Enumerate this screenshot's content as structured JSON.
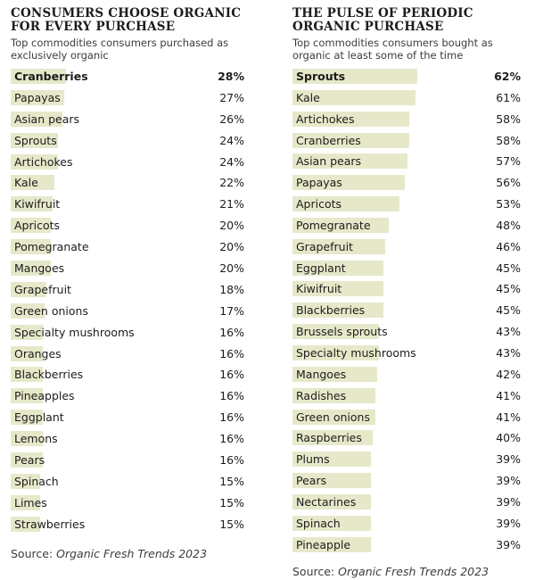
{
  "chart_data": [
    {
      "type": "bar",
      "title": "CONSUMERS CHOOSE ORGANIC FOR EVERY PURCHASE",
      "subtitle": "Top commodities consumers purchased as exclusively organic",
      "source_label": "Source: ",
      "source_name": "Organic Fresh Trends 2023",
      "max_value": 62,
      "categories": [
        "Cranberries",
        "Papayas",
        "Asian pears",
        "Sprouts",
        "Artichokes",
        "Kale",
        "Kiwifruit",
        "Apricots",
        "Pomegranate",
        "Mangoes",
        "Grapefruit",
        "Green onions",
        "Specialty mushrooms",
        "Oranges",
        "Blackberries",
        "Pineapples",
        "Eggplant",
        "Lemons",
        "Pears",
        "Spinach",
        "Limes",
        "Strawberries"
      ],
      "values": [
        28,
        27,
        26,
        24,
        24,
        22,
        21,
        20,
        20,
        20,
        18,
        17,
        16,
        16,
        16,
        16,
        16,
        16,
        16,
        15,
        15,
        15
      ],
      "labels": [
        "28%",
        "27%",
        "26%",
        "24%",
        "24%",
        "22%",
        "21%",
        "20%",
        "20%",
        "20%",
        "18%",
        "17%",
        "16%",
        "16%",
        "16%",
        "16%",
        "16%",
        "16%",
        "16%",
        "15%",
        "15%",
        "15%"
      ]
    },
    {
      "type": "bar",
      "title": "THE PULSE OF PERIODIC ORGANIC PURCHASE",
      "subtitle": "Top commodities consumers bought as organic at least some of the time",
      "source_label": "Source: ",
      "source_name": "Organic Fresh Trends 2023",
      "max_value": 62,
      "categories": [
        "Sprouts",
        "Kale",
        "Artichokes",
        "Cranberries",
        "Asian pears",
        "Papayas",
        "Apricots",
        "Pomegranate",
        "Grapefruit",
        "Eggplant",
        "Kiwifruit",
        "Blackberries",
        "Brussels sprouts",
        "Specialty mushrooms",
        "Mangoes",
        "Radishes",
        "Green onions",
        "Raspberries",
        "Plums",
        "Pears",
        "Nectarines",
        "Spinach",
        "Pineapple"
      ],
      "values": [
        62,
        61,
        58,
        58,
        57,
        56,
        53,
        48,
        46,
        45,
        45,
        45,
        43,
        43,
        42,
        41,
        41,
        40,
        39,
        39,
        39,
        39,
        39
      ],
      "labels": [
        "62%",
        "61%",
        "58%",
        "58%",
        "57%",
        "56%",
        "53%",
        "48%",
        "46%",
        "45%",
        "45%",
        "45%",
        "43%",
        "43%",
        "42%",
        "41%",
        "41%",
        "40%",
        "39%",
        "39%",
        "39%",
        "39%",
        "39%"
      ]
    }
  ],
  "colors": {
    "bar": "#e6e8c9",
    "text": "#1c1c1c",
    "muted": "#3c3c3c"
  }
}
